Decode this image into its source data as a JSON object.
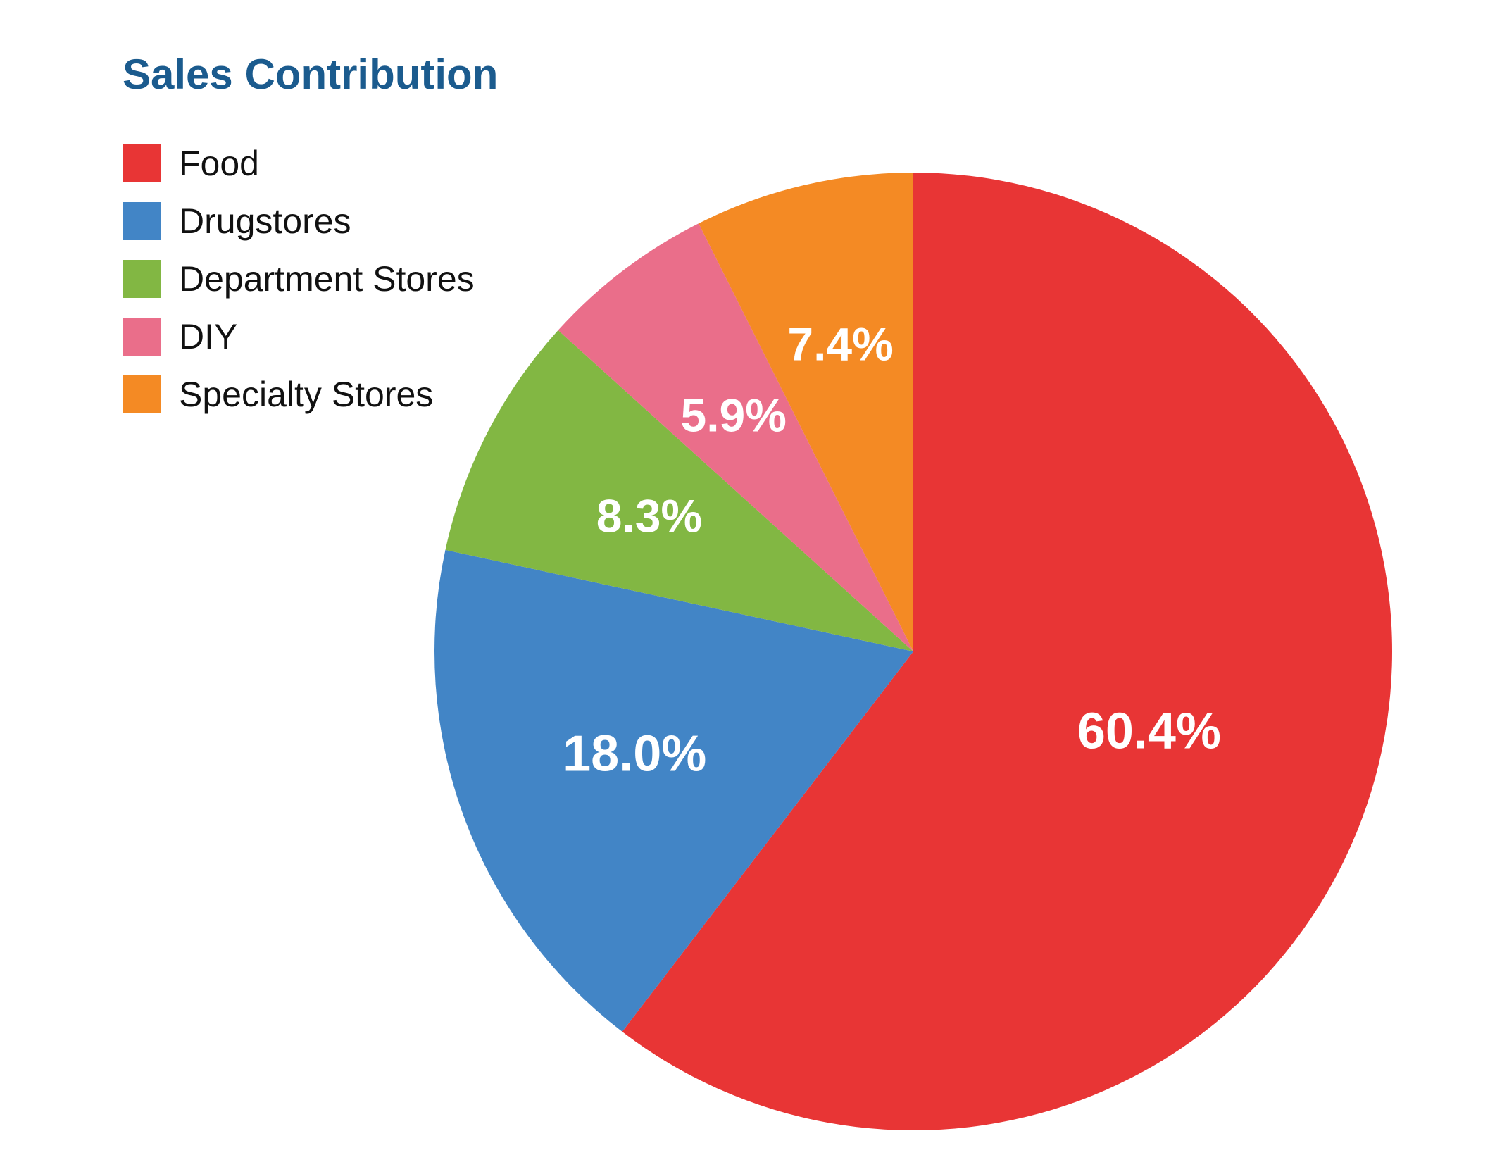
{
  "chart_data": {
    "type": "pie",
    "title": "Sales Contribution",
    "categories": [
      "Food",
      "Drugstores",
      "Department Stores",
      "DIY",
      "Specialty Stores"
    ],
    "values": [
      60.4,
      18.0,
      8.3,
      5.9,
      7.4
    ],
    "value_labels": [
      "60.4%",
      "18.0%",
      "8.3%",
      "5.9%",
      "7.4%"
    ],
    "colors": [
      "#e83535",
      "#4285c6",
      "#82b743",
      "#ea6e8a",
      "#f48a24"
    ],
    "start": "top, clockwise",
    "legend_position": "top-left"
  }
}
